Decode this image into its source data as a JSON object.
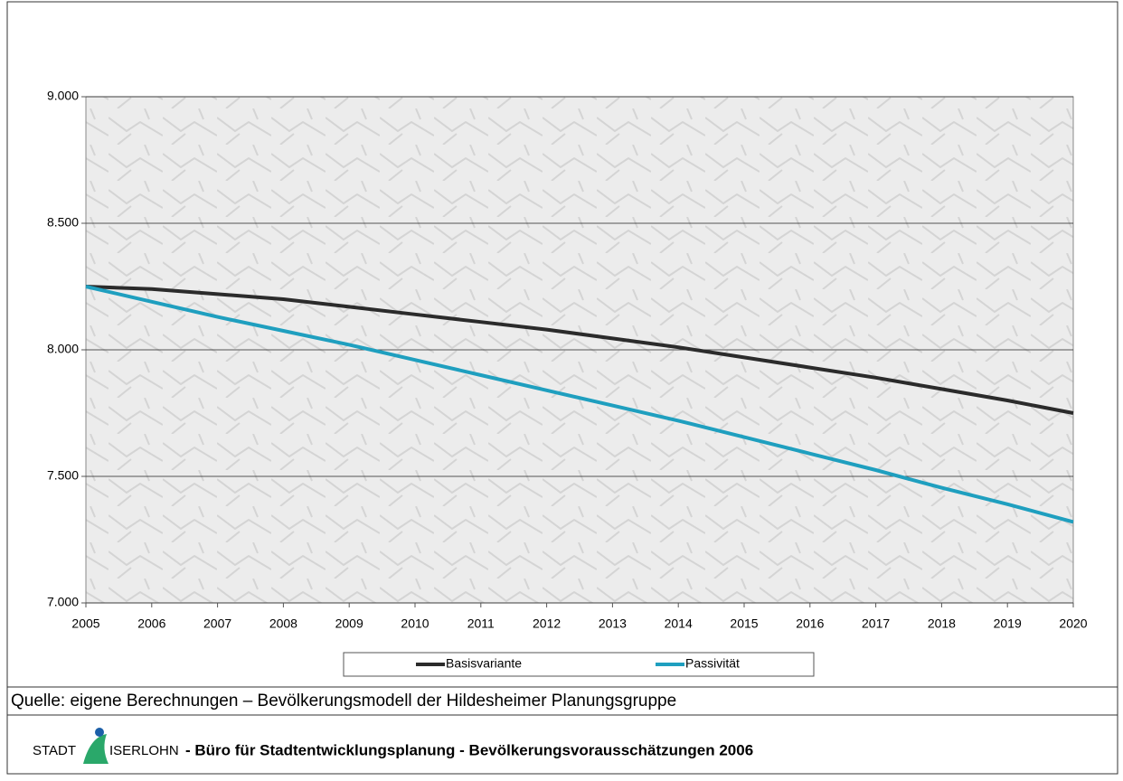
{
  "chart_data": {
    "type": "line",
    "x": [
      2005,
      2006,
      2007,
      2008,
      2009,
      2010,
      2011,
      2012,
      2013,
      2014,
      2015,
      2016,
      2017,
      2018,
      2019,
      2020
    ],
    "series": [
      {
        "name": "Basisvariante",
        "color": "#2b2b2b",
        "values": [
          8250,
          8240,
          8220,
          8200,
          8170,
          8140,
          8110,
          8080,
          8045,
          8010,
          7970,
          7930,
          7890,
          7845,
          7800,
          7750
        ]
      },
      {
        "name": "Passivität",
        "color": "#1f9fbf",
        "values": [
          8250,
          8190,
          8130,
          8075,
          8020,
          7960,
          7900,
          7840,
          7780,
          7720,
          7655,
          7590,
          7525,
          7455,
          7390,
          7320
        ]
      }
    ],
    "xlim": [
      2005,
      2020
    ],
    "xticks": [
      2005,
      2006,
      2007,
      2008,
      2009,
      2010,
      2011,
      2012,
      2013,
      2014,
      2015,
      2016,
      2017,
      2018,
      2019,
      2020
    ],
    "ylim": [
      7000,
      9000
    ],
    "yticks": [
      {
        "value": 7000,
        "label": "7.000"
      },
      {
        "value": 7500,
        "label": "7.500"
      },
      {
        "value": 8000,
        "label": "8.000"
      },
      {
        "value": 8500,
        "label": "8.500"
      },
      {
        "value": 9000,
        "label": "9.000"
      }
    ],
    "grid": true,
    "legend": "bottom"
  },
  "source": "Quelle: eigene Berechnungen – Bevölkerungsmodell der Hildesheimer Planungsgruppe",
  "footer": {
    "city_prefix": "STADT",
    "city_name": "ISERLOHN",
    "text": "- Büro für Stadtentwicklungsplanung - Bevölkerungsvorausschätzungen 2006"
  }
}
